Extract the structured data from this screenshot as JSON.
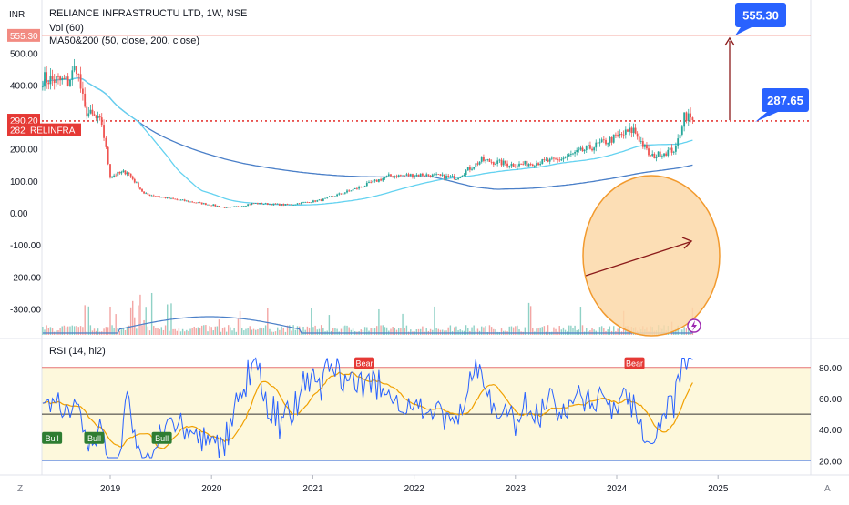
{
  "header": {
    "currency": "INR",
    "symbol_line": "RELIANCE INFRASTRUCTU LTD, 1W, NSE",
    "vol_line": "Vol (60)",
    "ma_line": "MA50&200 (50, close, 200, close)",
    "rsi_line": "RSI (14, hl2)"
  },
  "badges": {
    "target": "555.30",
    "close": "290.20",
    "breakout": "282.00",
    "ticker": "RELINFRA"
  },
  "callouts": {
    "target": "555.30",
    "level": "287.65"
  },
  "corners": {
    "left": "Z",
    "right": "A"
  },
  "colors": {
    "up": "#26a69a",
    "down": "#ef5350",
    "ma50": "#64d2f0",
    "ma200": "#4a7fc8",
    "rsi": "#2962ff",
    "rsi_ma": "#f0a000",
    "callout": "#2962ff",
    "ellipse_fill": "#fbd8a8",
    "ellipse_stroke": "#f29a2e",
    "trend_arrow": "#8b1a1a"
  },
  "chart_data": [
    {
      "type": "candlestick",
      "ylim": [
        -370,
        560
      ],
      "y_ticks": [
        "500.00",
        "400.00",
        "300.00",
        "200.00",
        "100.00",
        "0.00",
        "-100.00",
        "-200.00",
        "-300.00"
      ],
      "x_ticks": [
        "2019",
        "2020",
        "2021",
        "2022",
        "2023",
        "2024",
        "2025"
      ],
      "approx_weekly_close_path": [
        {
          "x": "2018-05",
          "y": 420
        },
        {
          "x": "2018-08",
          "y": 410
        },
        {
          "x": "2018-09",
          "y": 460
        },
        {
          "x": "2018-10",
          "y": 320
        },
        {
          "x": "2018-12",
          "y": 280
        },
        {
          "x": "2019-01",
          "y": 115
        },
        {
          "x": "2019-03",
          "y": 130
        },
        {
          "x": "2019-05",
          "y": 60
        },
        {
          "x": "2019-08",
          "y": 45
        },
        {
          "x": "2020-01",
          "y": 25
        },
        {
          "x": "2020-03",
          "y": 15
        },
        {
          "x": "2020-06",
          "y": 30
        },
        {
          "x": "2020-10",
          "y": 25
        },
        {
          "x": "2021-02",
          "y": 40
        },
        {
          "x": "2021-06",
          "y": 75
        },
        {
          "x": "2021-10",
          "y": 115
        },
        {
          "x": "2022-02",
          "y": 120
        },
        {
          "x": "2022-06",
          "y": 110
        },
        {
          "x": "2022-09",
          "y": 165
        },
        {
          "x": "2023-01",
          "y": 150
        },
        {
          "x": "2023-06",
          "y": 165
        },
        {
          "x": "2023-11",
          "y": 215
        },
        {
          "x": "2024-03",
          "y": 260
        },
        {
          "x": "2024-05",
          "y": 175
        },
        {
          "x": "2024-08",
          "y": 200
        },
        {
          "x": "2024-09",
          "y": 310
        },
        {
          "x": "2024-10",
          "y": 290.2
        }
      ],
      "annotations": {
        "target": 555.3,
        "horizontal_level": 287.65,
        "badge_lines": [
          555.3,
          290.2,
          282.0
        ]
      }
    },
    {
      "type": "line",
      "title": "RSI (14, hl2)",
      "ylim": [
        15,
        90
      ],
      "y_ticks": [
        "80.00",
        "60.00",
        "40.00",
        "20.00"
      ],
      "bands": [
        80,
        20
      ],
      "midline": 50,
      "labels": [
        {
          "text": "Bull",
          "x": "2018-06"
        },
        {
          "text": "Bull",
          "x": "2018-11"
        },
        {
          "text": "Bull",
          "x": "2019-07"
        },
        {
          "text": "Bear",
          "x": "2021-07"
        },
        {
          "text": "Bear",
          "x": "2024-03"
        }
      ]
    }
  ]
}
